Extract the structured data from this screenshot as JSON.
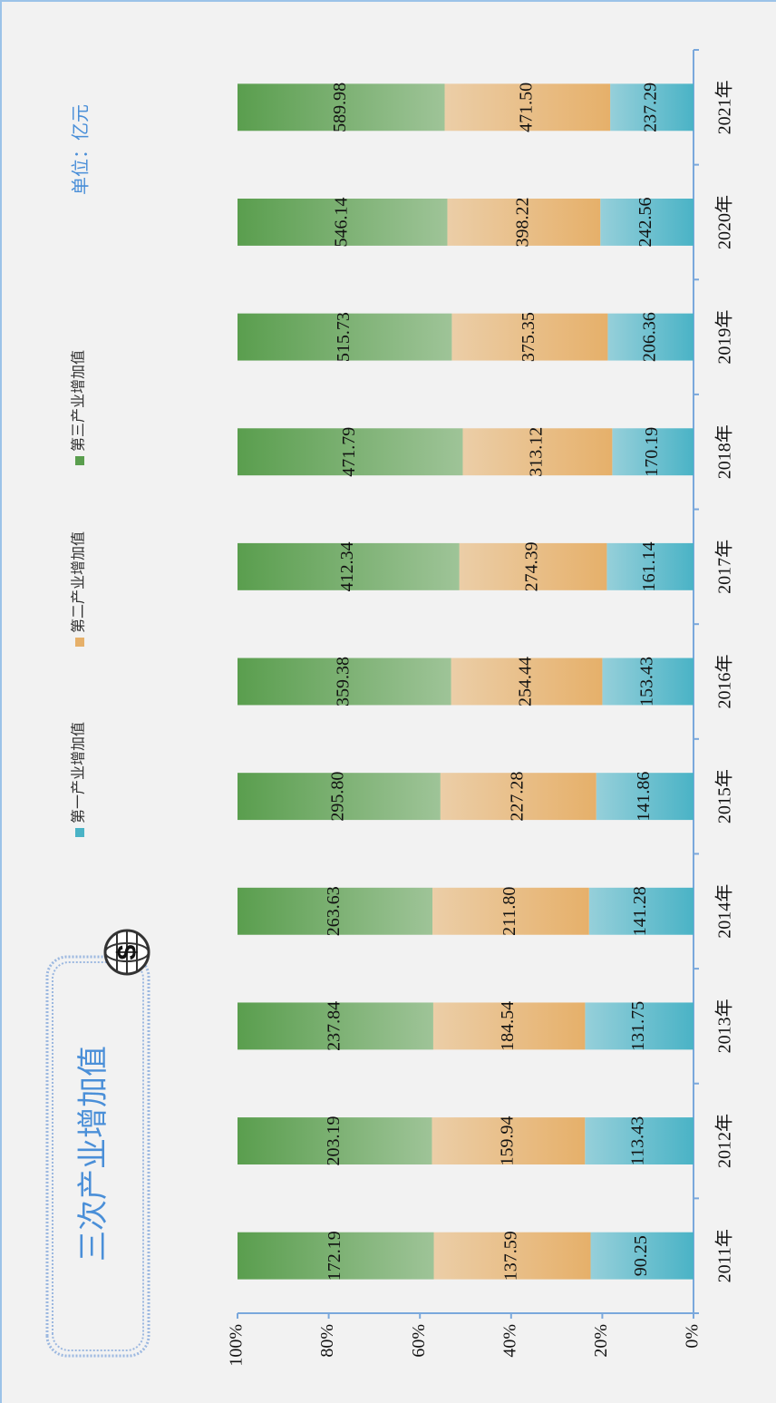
{
  "chart_data": {
    "type": "stacked_bar_100",
    "title": "三次产业增加值",
    "unit": "单位：亿元",
    "categories": [
      "2011年",
      "2012年",
      "2013年",
      "2014年",
      "2015年",
      "2016年",
      "2017年",
      "2018年",
      "2019年",
      "2020年",
      "2021年"
    ],
    "series": [
      {
        "name": "第一产业增加值",
        "color": "#4ab3c6",
        "values": [
          90.25,
          113.43,
          131.75,
          141.28,
          141.86,
          153.43,
          161.14,
          170.19,
          206.36,
          242.56,
          237.29
        ],
        "value_labels": [
          "90.25",
          "113.43",
          "131.75",
          "141.28",
          "141.86",
          "153.43",
          "161.14",
          "170.19",
          "206.36",
          "242.56",
          "237.29"
        ]
      },
      {
        "name": "第二产业增加值",
        "color": "#e6b06a",
        "values": [
          137.59,
          159.94,
          184.54,
          211.8,
          227.28,
          254.44,
          274.39,
          313.12,
          375.35,
          398.22,
          471.5
        ],
        "value_labels": [
          "137.59",
          "159.94",
          "184.54",
          "211.80",
          "227.28",
          "254.44",
          "274.39",
          "313.12",
          "375.35",
          "398.22",
          "471.50"
        ]
      },
      {
        "name": "第三产业增加值",
        "color": "#5a9e4e",
        "values": [
          172.19,
          203.19,
          237.84,
          263.63,
          295.8,
          359.38,
          412.34,
          471.79,
          515.73,
          546.14,
          589.98
        ],
        "value_labels": [
          "172.19",
          "203.19",
          "237.84",
          "263.63",
          "295.80",
          "359.38",
          "412.34",
          "471.79",
          "515.73",
          "546.14",
          "589.98"
        ]
      }
    ],
    "ylim": [
      0,
      100
    ],
    "yticks": [
      {
        "value": 0,
        "label": "0%"
      },
      {
        "value": 20,
        "label": "20%"
      },
      {
        "value": 40,
        "label": "40%"
      },
      {
        "value": 60,
        "label": "60%"
      },
      {
        "value": 80,
        "label": "80%"
      },
      {
        "value": 100,
        "label": "100%"
      }
    ]
  }
}
